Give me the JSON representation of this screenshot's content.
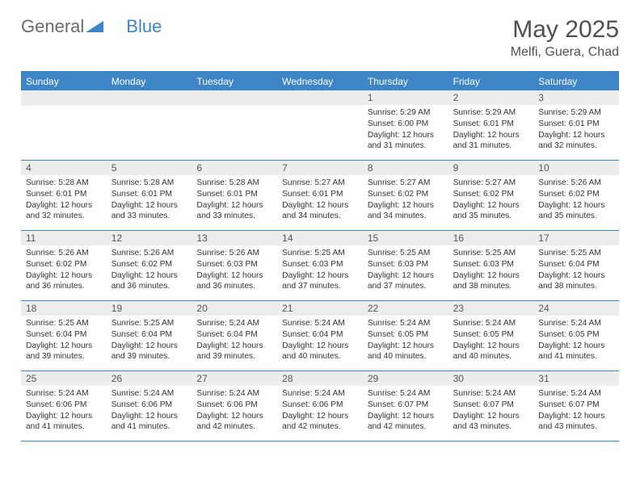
{
  "logo": {
    "text1": "General",
    "text2": "Blue"
  },
  "title": "May 2025",
  "location": "Melfi, Guera, Chad",
  "colors": {
    "brand": "#3d85c6",
    "header_bg": "#3d85c6",
    "daynum_bg": "#ededed",
    "text": "#333333",
    "title_color": "#505050"
  },
  "day_names": [
    "Sunday",
    "Monday",
    "Tuesday",
    "Wednesday",
    "Thursday",
    "Friday",
    "Saturday"
  ],
  "weeks": [
    [
      null,
      null,
      null,
      null,
      {
        "n": "1",
        "sr": "5:29 AM",
        "ss": "6:00 PM",
        "dl": "12 hours and 31 minutes."
      },
      {
        "n": "2",
        "sr": "5:29 AM",
        "ss": "6:01 PM",
        "dl": "12 hours and 31 minutes."
      },
      {
        "n": "3",
        "sr": "5:29 AM",
        "ss": "6:01 PM",
        "dl": "12 hours and 32 minutes."
      }
    ],
    [
      {
        "n": "4",
        "sr": "5:28 AM",
        "ss": "6:01 PM",
        "dl": "12 hours and 32 minutes."
      },
      {
        "n": "5",
        "sr": "5:28 AM",
        "ss": "6:01 PM",
        "dl": "12 hours and 33 minutes."
      },
      {
        "n": "6",
        "sr": "5:28 AM",
        "ss": "6:01 PM",
        "dl": "12 hours and 33 minutes."
      },
      {
        "n": "7",
        "sr": "5:27 AM",
        "ss": "6:01 PM",
        "dl": "12 hours and 34 minutes."
      },
      {
        "n": "8",
        "sr": "5:27 AM",
        "ss": "6:02 PM",
        "dl": "12 hours and 34 minutes."
      },
      {
        "n": "9",
        "sr": "5:27 AM",
        "ss": "6:02 PM",
        "dl": "12 hours and 35 minutes."
      },
      {
        "n": "10",
        "sr": "5:26 AM",
        "ss": "6:02 PM",
        "dl": "12 hours and 35 minutes."
      }
    ],
    [
      {
        "n": "11",
        "sr": "5:26 AM",
        "ss": "6:02 PM",
        "dl": "12 hours and 36 minutes."
      },
      {
        "n": "12",
        "sr": "5:26 AM",
        "ss": "6:02 PM",
        "dl": "12 hours and 36 minutes."
      },
      {
        "n": "13",
        "sr": "5:26 AM",
        "ss": "6:03 PM",
        "dl": "12 hours and 36 minutes."
      },
      {
        "n": "14",
        "sr": "5:25 AM",
        "ss": "6:03 PM",
        "dl": "12 hours and 37 minutes."
      },
      {
        "n": "15",
        "sr": "5:25 AM",
        "ss": "6:03 PM",
        "dl": "12 hours and 37 minutes."
      },
      {
        "n": "16",
        "sr": "5:25 AM",
        "ss": "6:03 PM",
        "dl": "12 hours and 38 minutes."
      },
      {
        "n": "17",
        "sr": "5:25 AM",
        "ss": "6:04 PM",
        "dl": "12 hours and 38 minutes."
      }
    ],
    [
      {
        "n": "18",
        "sr": "5:25 AM",
        "ss": "6:04 PM",
        "dl": "12 hours and 39 minutes."
      },
      {
        "n": "19",
        "sr": "5:25 AM",
        "ss": "6:04 PM",
        "dl": "12 hours and 39 minutes."
      },
      {
        "n": "20",
        "sr": "5:24 AM",
        "ss": "6:04 PM",
        "dl": "12 hours and 39 minutes."
      },
      {
        "n": "21",
        "sr": "5:24 AM",
        "ss": "6:04 PM",
        "dl": "12 hours and 40 minutes."
      },
      {
        "n": "22",
        "sr": "5:24 AM",
        "ss": "6:05 PM",
        "dl": "12 hours and 40 minutes."
      },
      {
        "n": "23",
        "sr": "5:24 AM",
        "ss": "6:05 PM",
        "dl": "12 hours and 40 minutes."
      },
      {
        "n": "24",
        "sr": "5:24 AM",
        "ss": "6:05 PM",
        "dl": "12 hours and 41 minutes."
      }
    ],
    [
      {
        "n": "25",
        "sr": "5:24 AM",
        "ss": "6:06 PM",
        "dl": "12 hours and 41 minutes."
      },
      {
        "n": "26",
        "sr": "5:24 AM",
        "ss": "6:06 PM",
        "dl": "12 hours and 41 minutes."
      },
      {
        "n": "27",
        "sr": "5:24 AM",
        "ss": "6:06 PM",
        "dl": "12 hours and 42 minutes."
      },
      {
        "n": "28",
        "sr": "5:24 AM",
        "ss": "6:06 PM",
        "dl": "12 hours and 42 minutes."
      },
      {
        "n": "29",
        "sr": "5:24 AM",
        "ss": "6:07 PM",
        "dl": "12 hours and 42 minutes."
      },
      {
        "n": "30",
        "sr": "5:24 AM",
        "ss": "6:07 PM",
        "dl": "12 hours and 43 minutes."
      },
      {
        "n": "31",
        "sr": "5:24 AM",
        "ss": "6:07 PM",
        "dl": "12 hours and 43 minutes."
      }
    ]
  ],
  "labels": {
    "sunrise": "Sunrise: ",
    "sunset": "Sunset: ",
    "daylight": "Daylight: "
  }
}
